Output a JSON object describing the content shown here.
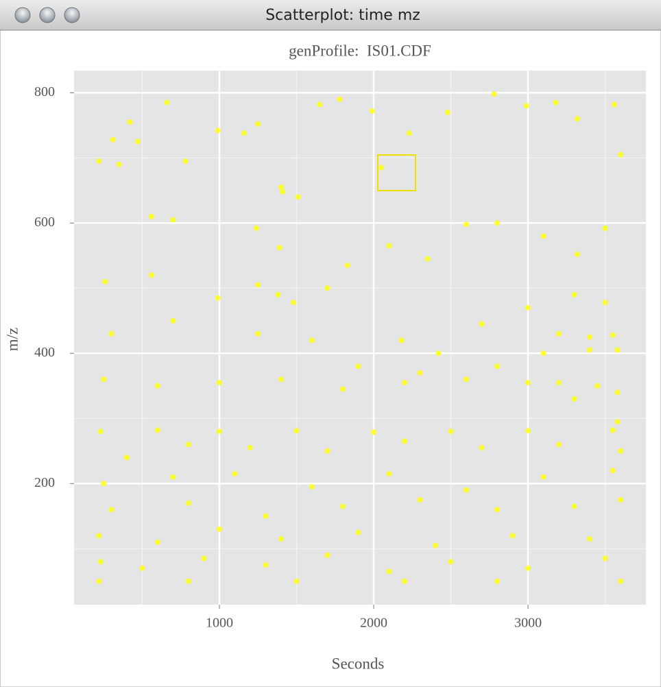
{
  "window": {
    "title": "Scatterplot: time mz"
  },
  "chart_data": {
    "type": "scatter",
    "title": "genProfile:  IS01.CDF",
    "x_label": "Seconds",
    "y_label": "m/z",
    "color": "#ffff00",
    "grid": true,
    "xlim": [
      58,
      3764
    ],
    "ylim": [
      14,
      834
    ],
    "xticks": [
      1000,
      2000,
      3000
    ],
    "yticks": [
      200,
      400,
      600,
      800
    ],
    "minor_xticks": [
      500,
      1500,
      2500,
      3500
    ],
    "minor_yticks": [
      100,
      300,
      500,
      700
    ],
    "x": [
      220,
      310,
      350,
      420,
      470,
      660,
      780,
      990,
      1160,
      1250,
      1400,
      1410,
      1650,
      1780,
      1990,
      2050,
      2230,
      2480,
      2780,
      2990,
      3180,
      3320,
      3560,
      3600,
      560,
      700,
      1240,
      1390,
      1510,
      1830,
      2100,
      2350,
      2600,
      2800,
      3100,
      3320,
      3500,
      260,
      560,
      990,
      1250,
      1380,
      1480,
      1700,
      2180,
      2420,
      2700,
      3000,
      3300,
      3500,
      300,
      700,
      1250,
      1600,
      1900,
      2300,
      2800,
      3200,
      3400,
      3550,
      3100,
      3400,
      3580,
      3200,
      3450,
      3580,
      3300,
      3000,
      2600,
      2200,
      1800,
      1400,
      1000,
      600,
      250,
      230,
      600,
      1000,
      1500,
      2000,
      2500,
      3000,
      3550,
      3580,
      400,
      800,
      1200,
      1700,
      2200,
      2700,
      3200,
      3600,
      250,
      700,
      1100,
      1600,
      2100,
      2600,
      3100,
      3550,
      300,
      800,
      1300,
      1800,
      2300,
      2800,
      3300,
      3600,
      220,
      600,
      1000,
      1400,
      1900,
      2400,
      2900,
      3400,
      230,
      500,
      900,
      1300,
      1700,
      2100,
      2500,
      3000,
      3500,
      220,
      800,
      1500,
      2200,
      2800,
      3600
    ],
    "values": [
      695,
      728,
      690,
      755,
      725,
      785,
      695,
      742,
      738,
      752,
      655,
      648,
      782,
      790,
      772,
      685,
      738,
      770,
      798,
      780,
      785,
      760,
      782,
      705,
      610,
      605,
      592,
      562,
      640,
      535,
      565,
      545,
      598,
      600,
      580,
      552,
      592,
      510,
      520,
      485,
      505,
      490,
      478,
      500,
      420,
      400,
      445,
      470,
      490,
      478,
      430,
      450,
      430,
      420,
      380,
      370,
      380,
      430,
      425,
      428,
      400,
      405,
      405,
      355,
      350,
      340,
      330,
      355,
      360,
      355,
      345,
      360,
      355,
      350,
      360,
      280,
      282,
      280,
      281,
      279,
      280,
      281,
      282,
      295,
      240,
      260,
      255,
      250,
      265,
      255,
      260,
      250,
      200,
      210,
      215,
      195,
      215,
      190,
      210,
      220,
      160,
      170,
      150,
      165,
      175,
      160,
      165,
      175,
      120,
      110,
      130,
      115,
      125,
      105,
      120,
      115,
      80,
      70,
      85,
      75,
      90,
      65,
      80,
      70,
      85,
      50,
      50,
      50,
      50,
      50,
      50
    ]
  }
}
